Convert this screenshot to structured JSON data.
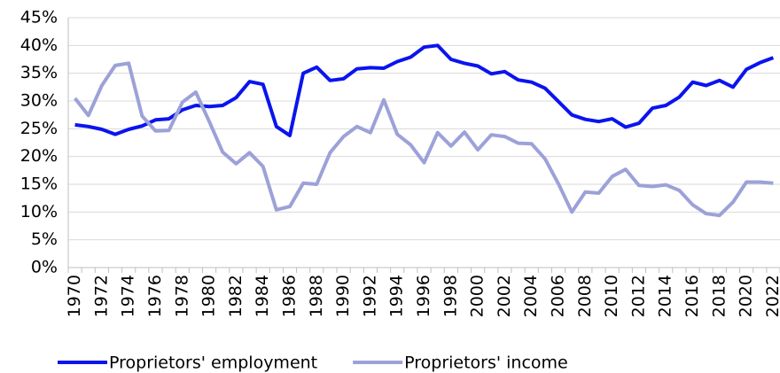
{
  "chart_data": {
    "type": "line",
    "categories": [
      "1970",
      null,
      "1972",
      null,
      "1974",
      null,
      "1976",
      null,
      "1978",
      null,
      "1980",
      null,
      "1982",
      null,
      "1984",
      null,
      "1986",
      null,
      "1988",
      null,
      "1990",
      null,
      "1992",
      null,
      "1994",
      null,
      "1996",
      null,
      "1998",
      null,
      "2000",
      null,
      "2002",
      null,
      "2004",
      null,
      "2006",
      null,
      "2008",
      null,
      "2010",
      null,
      "2012",
      null,
      "2014",
      null,
      "2016",
      null,
      "2018",
      null,
      "2020",
      null,
      "2022"
    ],
    "series": [
      {
        "name": "Proprietors' employment",
        "color": "#0a14ee",
        "values": [
          25.7,
          25.4,
          24.9,
          24.0,
          24.9,
          25.5,
          26.6,
          26.8,
          28.4,
          29.2,
          29.0,
          29.2,
          30.6,
          33.5,
          33.0,
          25.4,
          23.8,
          35.0,
          36.1,
          33.7,
          34.0,
          35.8,
          36.0,
          35.9,
          37.1,
          37.9,
          39.7,
          40.0,
          37.5,
          36.8,
          36.3,
          34.9,
          35.3,
          33.8,
          33.4,
          32.3,
          29.9,
          27.5,
          26.7,
          26.3,
          26.8,
          25.3,
          26.0,
          28.7,
          29.2,
          30.7,
          33.4,
          32.8,
          33.7,
          32.5,
          35.7,
          36.9,
          37.8
        ]
      },
      {
        "name": "Proprietors' income",
        "color": "#9ca2d8",
        "values": [
          30.5,
          27.4,
          32.8,
          36.4,
          36.8,
          27.3,
          24.6,
          24.7,
          29.8,
          31.6,
          26.3,
          20.8,
          18.7,
          20.7,
          18.2,
          10.4,
          11.0,
          15.2,
          15.0,
          20.7,
          23.6,
          25.4,
          24.3,
          30.2,
          24.0,
          22.1,
          18.9,
          24.3,
          21.9,
          24.4,
          21.2,
          23.9,
          23.6,
          22.4,
          22.3,
          19.6,
          15.1,
          10.0,
          13.6,
          13.4,
          16.4,
          17.7,
          14.8,
          14.6,
          14.9,
          13.9,
          11.3,
          9.7,
          9.4,
          11.8,
          15.4,
          15.4,
          15.2
        ]
      }
    ],
    "ylim": [
      0,
      45
    ],
    "yticks": [
      {
        "value": 0,
        "label": "0%"
      },
      {
        "value": 5,
        "label": "5%"
      },
      {
        "value": 10,
        "label": "10%"
      },
      {
        "value": 15,
        "label": "15%"
      },
      {
        "value": 20,
        "label": "20%"
      },
      {
        "value": 25,
        "label": "25%"
      },
      {
        "value": 30,
        "label": "30%"
      },
      {
        "value": 35,
        "label": "35%"
      },
      {
        "value": 40,
        "label": "40%"
      },
      {
        "value": 45,
        "label": "45%"
      }
    ],
    "grid": true,
    "legend": "bottom"
  }
}
